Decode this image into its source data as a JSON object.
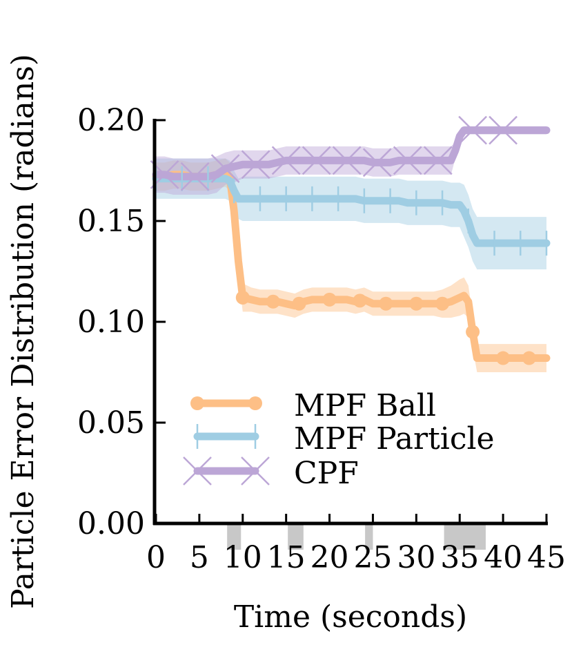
{
  "chart_data": {
    "type": "line",
    "title": "",
    "xlabel": "Time (seconds)",
    "ylabel": "Particle Error Distribution (radians)",
    "xlim": [
      0,
      45
    ],
    "ylim": [
      0,
      0.2
    ],
    "xticks": [
      "0",
      "5",
      "10",
      "15",
      "20",
      "25",
      "30",
      "35",
      "40",
      "45"
    ],
    "yticks": [
      "0.00",
      "0.05",
      "0.10",
      "0.15",
      "0.20"
    ],
    "legend_position": "lower-left",
    "grid": false,
    "highlight_intervals": [
      [
        8.2,
        9.8
      ],
      [
        15.2,
        17
      ],
      [
        24.1,
        25
      ],
      [
        33.2,
        38
      ]
    ],
    "highlight_color": "#c8c8c8",
    "series": [
      {
        "name": "MPF Ball",
        "color": "#fdbf86",
        "marker": "circle",
        "x": [
          0,
          1,
          2,
          3,
          4,
          5,
          6,
          7,
          8,
          8.5,
          9,
          9.5,
          10,
          11,
          12,
          13,
          14,
          15,
          16,
          17,
          18,
          19,
          20,
          21,
          22,
          23,
          24,
          25,
          26,
          27,
          28,
          29,
          30,
          31,
          32,
          33,
          34,
          35,
          35.5,
          36,
          36.5,
          37,
          38,
          39,
          40,
          41,
          42,
          43,
          44,
          45
        ],
        "y": [
          0.172,
          0.172,
          0.173,
          0.173,
          0.172,
          0.172,
          0.172,
          0.173,
          0.174,
          0.172,
          0.155,
          0.13,
          0.112,
          0.111,
          0.11,
          0.11,
          0.11,
          0.109,
          0.108,
          0.11,
          0.111,
          0.111,
          0.111,
          0.111,
          0.111,
          0.11,
          0.111,
          0.109,
          0.109,
          0.109,
          0.109,
          0.109,
          0.109,
          0.109,
          0.109,
          0.109,
          0.11,
          0.112,
          0.113,
          0.11,
          0.095,
          0.082,
          0.082,
          0.082,
          0.082,
          0.082,
          0.082,
          0.082,
          0.082,
          0.082
        ],
        "band": [
          0.007,
          0.007,
          0.007,
          0.007,
          0.007,
          0.007,
          0.007,
          0.007,
          0.007,
          0.007,
          0.007,
          0.007,
          0.007,
          0.006,
          0.006,
          0.006,
          0.006,
          0.006,
          0.006,
          0.006,
          0.006,
          0.006,
          0.006,
          0.006,
          0.006,
          0.006,
          0.006,
          0.006,
          0.006,
          0.006,
          0.006,
          0.006,
          0.006,
          0.006,
          0.006,
          0.007,
          0.008,
          0.009,
          0.009,
          0.008,
          0.008,
          0.007,
          0.007,
          0.007,
          0.007,
          0.007,
          0.007,
          0.007,
          0.007,
          0.007
        ],
        "marker_x": [
          10,
          13.5,
          16.5,
          20,
          23.5,
          26.5,
          30,
          33,
          36.5,
          40,
          43
        ]
      },
      {
        "name": "MPF Particle",
        "color": "#9fcde3",
        "marker": "vline",
        "x": [
          0,
          1,
          2,
          3,
          4,
          5,
          6,
          7,
          8,
          8.5,
          9,
          9.5,
          10,
          11,
          12,
          13,
          14,
          15,
          16,
          17,
          18,
          19,
          20,
          21,
          22,
          23,
          24,
          25,
          26,
          27,
          28,
          29,
          30,
          31,
          32,
          33,
          34,
          35,
          35.5,
          36,
          36.5,
          37,
          38,
          39,
          40,
          41,
          42,
          43,
          44,
          45
        ],
        "y": [
          0.171,
          0.171,
          0.171,
          0.171,
          0.171,
          0.171,
          0.171,
          0.171,
          0.171,
          0.17,
          0.165,
          0.161,
          0.161,
          0.161,
          0.161,
          0.161,
          0.161,
          0.161,
          0.161,
          0.161,
          0.161,
          0.161,
          0.161,
          0.161,
          0.161,
          0.161,
          0.16,
          0.16,
          0.16,
          0.16,
          0.16,
          0.159,
          0.159,
          0.159,
          0.159,
          0.159,
          0.158,
          0.158,
          0.155,
          0.15,
          0.143,
          0.139,
          0.139,
          0.139,
          0.139,
          0.139,
          0.139,
          0.139,
          0.139,
          0.139
        ],
        "band": [
          0.01,
          0.01,
          0.01,
          0.01,
          0.01,
          0.01,
          0.01,
          0.01,
          0.01,
          0.01,
          0.01,
          0.01,
          0.011,
          0.011,
          0.011,
          0.011,
          0.011,
          0.011,
          0.011,
          0.011,
          0.011,
          0.011,
          0.011,
          0.011,
          0.011,
          0.011,
          0.011,
          0.011,
          0.011,
          0.011,
          0.011,
          0.011,
          0.011,
          0.011,
          0.011,
          0.011,
          0.011,
          0.011,
          0.013,
          0.013,
          0.013,
          0.013,
          0.013,
          0.013,
          0.013,
          0.013,
          0.013,
          0.013,
          0.013,
          0.013
        ],
        "marker_x": [
          0,
          3,
          6,
          9,
          12,
          15,
          18,
          21,
          24,
          27,
          30,
          33,
          36,
          39,
          42,
          45
        ]
      },
      {
        "name": "CPF",
        "color": "#bca6d6",
        "marker": "x",
        "x": [
          0,
          1,
          2,
          3,
          4,
          5,
          6,
          7,
          8,
          9,
          10,
          11,
          12,
          13,
          14,
          15,
          16,
          17,
          18,
          19,
          20,
          21,
          22,
          23,
          24,
          25,
          26,
          27,
          28,
          29,
          30,
          31,
          32,
          33,
          34,
          34.5,
          35,
          35.5,
          36,
          37,
          38,
          39,
          40,
          41,
          42,
          43,
          44,
          45
        ],
        "y": [
          0.173,
          0.173,
          0.172,
          0.172,
          0.172,
          0.172,
          0.172,
          0.173,
          0.176,
          0.177,
          0.178,
          0.178,
          0.178,
          0.178,
          0.179,
          0.18,
          0.18,
          0.18,
          0.18,
          0.18,
          0.18,
          0.18,
          0.18,
          0.18,
          0.18,
          0.179,
          0.179,
          0.179,
          0.18,
          0.18,
          0.18,
          0.18,
          0.18,
          0.18,
          0.18,
          0.185,
          0.192,
          0.195,
          0.195,
          0.195,
          0.195,
          0.195,
          0.195,
          0.195,
          0.195,
          0.195,
          0.195,
          0.195
        ],
        "band": [
          0.009,
          0.009,
          0.009,
          0.009,
          0.009,
          0.009,
          0.009,
          0.009,
          0.008,
          0.008,
          0.007,
          0.007,
          0.007,
          0.007,
          0.007,
          0.007,
          0.007,
          0.007,
          0.007,
          0.007,
          0.007,
          0.007,
          0.007,
          0.007,
          0.007,
          0.007,
          0.007,
          0.007,
          0.007,
          0.007,
          0.007,
          0.007,
          0.007,
          0.007,
          0.007,
          0.004,
          0.002,
          0.002,
          0.002,
          0.002,
          0.002,
          0.002,
          0.002,
          0.002,
          0.002,
          0.002,
          0.002,
          0.002
        ],
        "marker_x": [
          1,
          4.5,
          8,
          11.5,
          15,
          18.5,
          22,
          25.5,
          29,
          32.5,
          36.5,
          40
        ]
      }
    ]
  }
}
